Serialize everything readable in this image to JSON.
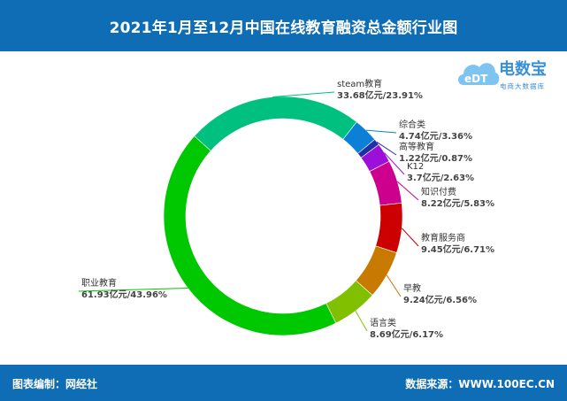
{
  "header": {
    "title": "2021年1月至12月中国在线教育融资总金额行业图"
  },
  "footer": {
    "left": "图表编制：网经社",
    "right": "数据来源：WWW.100EC.CN"
  },
  "logo": {
    "name": "电数宝",
    "sub": "电商大数据库",
    "mark": "eDT",
    "brand_color": "#3a8fd6"
  },
  "chart_data": {
    "type": "donut",
    "slices": [
      {
        "label": "steam教育",
        "value_text": "33.68亿元/23.91%",
        "value": 33.68,
        "percent": 23.91,
        "color": "#00c07f"
      },
      {
        "label": "综合类",
        "value_text": "4.74亿元/3.36%",
        "value": 4.74,
        "percent": 3.36,
        "color": "#0b80d6"
      },
      {
        "label": "高等教育",
        "value_text": "1.22亿元/0.87%",
        "value": 1.22,
        "percent": 0.87,
        "color": "#1e2fa8"
      },
      {
        "label": "K12",
        "value_text": "3.7亿元/2.63%",
        "value": 3.7,
        "percent": 2.63,
        "color": "#9b10d8"
      },
      {
        "label": "知识付费",
        "value_text": "8.22亿元/5.83%",
        "value": 8.22,
        "percent": 5.83,
        "color": "#cc008c"
      },
      {
        "label": "教育服务商",
        "value_text": "9.45亿元/6.71%",
        "value": 9.45,
        "percent": 6.71,
        "color": "#cc0000"
      },
      {
        "label": "早教",
        "value_text": "9.24亿元/6.56%",
        "value": 9.24,
        "percent": 6.56,
        "color": "#c87a00"
      },
      {
        "label": "语言类",
        "value_text": "8.69亿元/6.17%",
        "value": 8.69,
        "percent": 6.17,
        "color": "#80c000"
      },
      {
        "label": "职业教育",
        "value_text": "61.93亿元/43.96%",
        "value": 61.93,
        "percent": 43.96,
        "color": "#00c800"
      }
    ]
  }
}
